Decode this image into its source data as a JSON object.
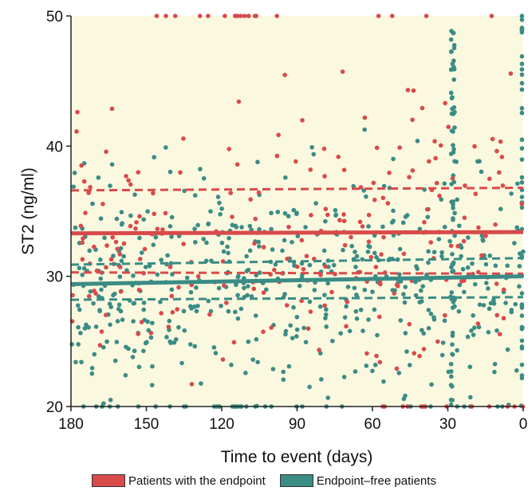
{
  "chart_data": {
    "type": "scatter",
    "title": "",
    "xlabel": "Time to event (days)",
    "ylabel": "ST2 (ng/ml)",
    "xlim": [
      180,
      0
    ],
    "ylim": [
      20,
      50
    ],
    "x_reversed": true,
    "x_ticks": [
      "180",
      "150",
      "120",
      "90",
      "60",
      "30",
      "0"
    ],
    "y_ticks": [
      "20",
      "30",
      "40",
      "50"
    ],
    "background": "#faf8df",
    "grid": false,
    "legend_position": "bottom",
    "series": [
      {
        "name": "Patients with the endpoint",
        "color": "#d94a4a",
        "points": "scatter",
        "fit": {
          "start": 33.3,
          "end": 33.4
        },
        "ci_lower": {
          "start": 30.3,
          "end": 30.2
        },
        "ci_upper": {
          "start": 36.6,
          "end": 36.8
        }
      },
      {
        "name": "Endpoint–free patients",
        "color": "#3a8c85",
        "points": "scatter",
        "fit": {
          "start": 29.4,
          "end": 30.0
        },
        "ci_lower": {
          "start": 28.2,
          "end": 28.4
        },
        "ci_upper": {
          "start": 30.9,
          "end": 31.4
        }
      }
    ],
    "legend": [
      {
        "label": "Patients with the endpoint",
        "color": "#d94a4a"
      },
      {
        "label": "Endpoint–free patients",
        "color": "#3a8c85"
      }
    ]
  }
}
